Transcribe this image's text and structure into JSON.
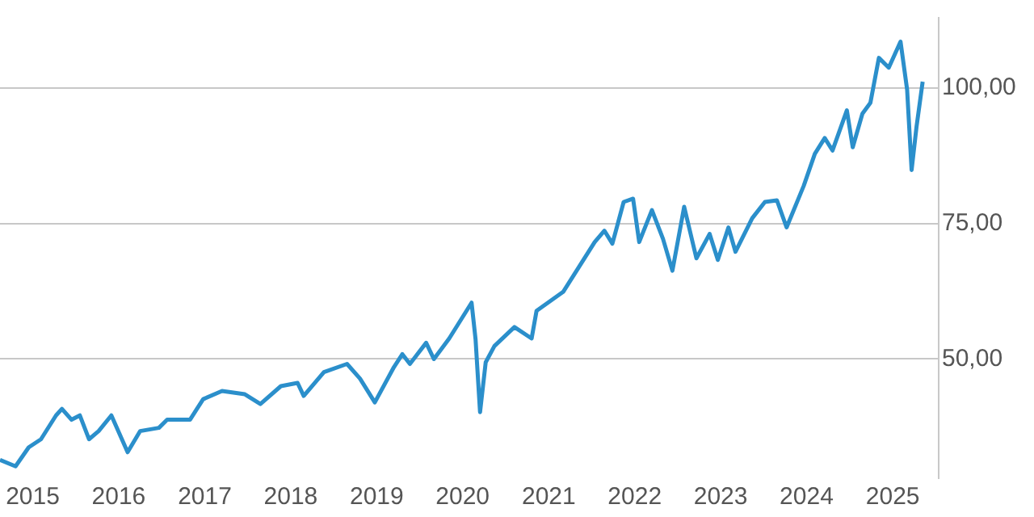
{
  "chart_data": {
    "type": "line",
    "x": [
      "2014-08-15",
      "2014-10-20",
      "2014-12-15",
      "2015-02-05",
      "2015-04-10",
      "2015-05-05",
      "2015-06-15",
      "2015-07-20",
      "2015-08-28",
      "2015-10-08",
      "2015-12-01",
      "2016-02-08",
      "2016-04-01",
      "2016-06-20",
      "2016-07-25",
      "2016-10-30",
      "2016-12-25",
      "2017-03-15",
      "2017-06-20",
      "2017-08-25",
      "2017-11-20",
      "2018-01-30",
      "2018-02-25",
      "2018-05-22",
      "2018-08-28",
      "2018-10-22",
      "2018-12-24",
      "2019-03-15",
      "2019-04-20",
      "2019-05-22",
      "2019-07-30",
      "2019-09-01",
      "2019-11-05",
      "2020-02-08",
      "2020-02-25",
      "2020-03-15",
      "2020-04-08",
      "2020-05-15",
      "2020-08-08",
      "2020-10-20",
      "2020-11-10",
      "2021-03-03",
      "2021-05-12",
      "2021-07-15",
      "2021-08-25",
      "2021-09-28",
      "2021-11-15",
      "2021-12-25",
      "2022-01-20",
      "2022-03-15",
      "2022-05-01",
      "2022-06-10",
      "2022-07-30",
      "2022-09-20",
      "2022-11-15",
      "2022-12-20",
      "2023-02-03",
      "2023-03-05",
      "2023-05-15",
      "2023-07-08",
      "2023-08-28",
      "2023-10-08",
      "2023-12-20",
      "2024-02-05",
      "2024-03-18",
      "2024-04-20",
      "2024-06-20",
      "2024-07-15",
      "2024-08-25",
      "2024-09-28",
      "2024-11-03",
      "2024-12-15",
      "2025-02-03",
      "2025-03-03",
      "2025-03-22",
      "2025-04-12",
      "2025-05-08"
    ],
    "series": [
      {
        "color": "#2b8fcb",
        "values": [
          31.4,
          30.2,
          33.7,
          35.2,
          39.6,
          40.8,
          38.8,
          39.6,
          35.2,
          36.7,
          39.6,
          32.8,
          36.7,
          37.3,
          38.8,
          38.8,
          42.6,
          44.1,
          43.5,
          41.7,
          45.0,
          45.6,
          43.2,
          47.6,
          49.1,
          46.4,
          42.0,
          48.5,
          50.9,
          49.1,
          53.0,
          50.0,
          53.8,
          60.4,
          53.6,
          40.2,
          49.4,
          52.4,
          55.9,
          53.8,
          58.9,
          62.4,
          67.2,
          71.6,
          73.7,
          71.3,
          79.0,
          79.6,
          71.6,
          77.5,
          72.2,
          66.3,
          78.1,
          68.6,
          73.1,
          68.3,
          74.3,
          69.8,
          76.0,
          79.0,
          79.3,
          74.3,
          82.0,
          87.9,
          90.8,
          88.5,
          95.9,
          89.1,
          95.3,
          97.3,
          105.6,
          103.8,
          108.6,
          99.7,
          84.9,
          92.9,
          101.2
        ]
      }
    ],
    "xlim": [
      "2014-08-15",
      "2025-07-15"
    ],
    "xticks": [
      "2015",
      "2016",
      "2017",
      "2018",
      "2019",
      "2020",
      "2021",
      "2022",
      "2023",
      "2024",
      "2025"
    ],
    "ylim": [
      28,
      113
    ],
    "yticks": [
      {
        "value": 50,
        "label": "50,00"
      },
      {
        "value": 75,
        "label": "75,00"
      },
      {
        "value": 100,
        "label": "100,00"
      }
    ],
    "grid": "y",
    "marker": "none",
    "line_style": "solid",
    "legend": false
  }
}
